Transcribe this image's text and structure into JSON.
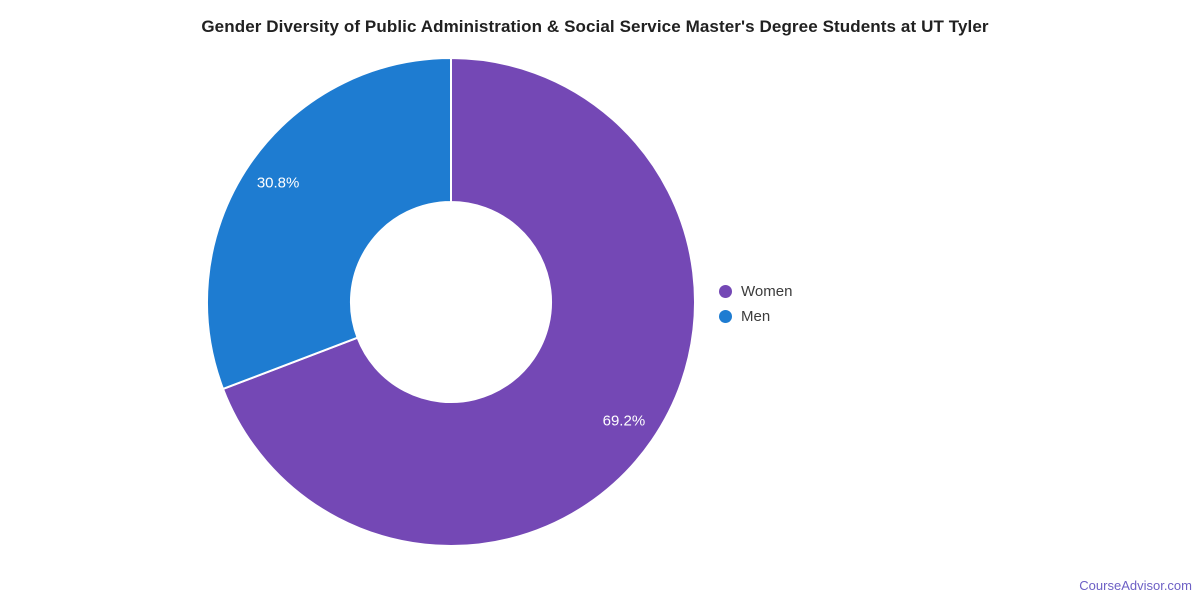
{
  "page": {
    "watermark": "CourseAdvisor.com"
  },
  "chart_data": {
    "type": "pie",
    "donut": true,
    "title": "Gender Diversity of Public Administration & Social Service Master's Degree Students at UT Tyler",
    "categories": [
      "Women",
      "Men"
    ],
    "values": [
      69.2,
      30.8
    ],
    "labels": [
      "69.2%",
      "30.8%"
    ],
    "colors": [
      "#7448b5",
      "#1e7cd1"
    ],
    "start_angle_deg": 0,
    "direction": "clockwise",
    "inner_radius_ratio": 0.41,
    "label_color": "#ffffff",
    "legend_position": "right",
    "grid": false
  },
  "legend": {
    "items": [
      {
        "label": "Women",
        "color": "#7448b5"
      },
      {
        "label": "Men",
        "color": "#1e7cd1"
      }
    ]
  },
  "colors": {
    "background": "#ffffff",
    "title": "#212121",
    "legend_text": "#3c3c3c",
    "watermark": "#6d60c5",
    "slice_border": "#ffffff"
  }
}
